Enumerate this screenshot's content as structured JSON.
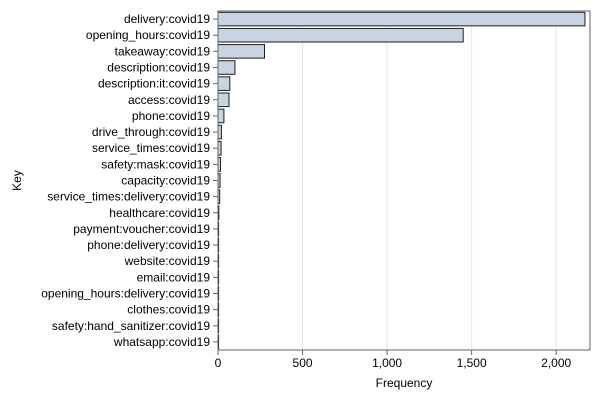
{
  "chart_data": {
    "type": "bar",
    "orientation": "horizontal",
    "title": "",
    "xlabel": "Frequency",
    "ylabel": "Key",
    "xlim": [
      0,
      2200
    ],
    "x_ticks": [
      0,
      500,
      1000,
      1500,
      2000
    ],
    "x_tick_labels": [
      "0",
      "500",
      "1,000",
      "1,500",
      "2,000"
    ],
    "grid": "vertical",
    "legend": "none",
    "colors": {
      "bar_fill": "#c8d3e3",
      "bar_stroke": "#1f1f1f",
      "grid": "#e6e6e6",
      "frame": "#666666"
    },
    "categories": [
      "delivery:covid19",
      "opening_hours:covid19",
      "takeaway:covid19",
      "description:covid19",
      "description:it:covid19",
      "access:covid19",
      "phone:covid19",
      "drive_through:covid19",
      "service_times:covid19",
      "safety:mask:covid19",
      "capacity:covid19",
      "service_times:delivery:covid19",
      "healthcare:covid19",
      "payment:voucher:covid19",
      "phone:delivery:covid19",
      "website:covid19",
      "email:covid19",
      "opening_hours:delivery:covid19",
      "clothes:covid19",
      "safety:hand_sanitizer:covid19",
      "whatsapp:covid19"
    ],
    "values": [
      2170,
      1450,
      275,
      100,
      70,
      65,
      35,
      20,
      18,
      15,
      12,
      10,
      5,
      2,
      2,
      1,
      1,
      1,
      1,
      1,
      1
    ]
  }
}
